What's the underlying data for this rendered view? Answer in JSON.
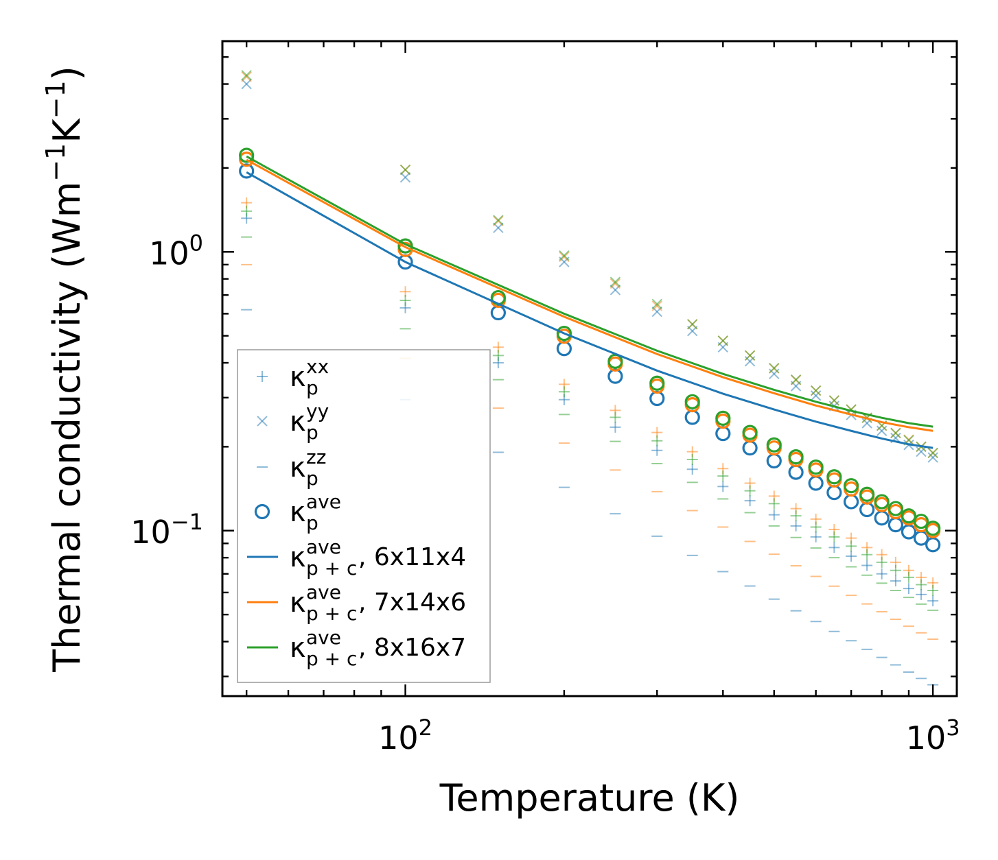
{
  "chart_data": {
    "type": "scatter",
    "xscale": "log",
    "yscale": "log",
    "xlabel": "Temperature (K)",
    "ylabel_main": "Thermal conductivity (Wm",
    "ylabel_sup1": "−1",
    "ylabel_mid": "K",
    "ylabel_sup2": "−1",
    "ylabel_end": ")",
    "xlim": [
      45,
      1110
    ],
    "ylim": [
      0.0255,
      5.7
    ],
    "xticks": [
      {
        "value": 100,
        "base": "10",
        "exp": "2"
      },
      {
        "value": 1000,
        "base": "10",
        "exp": "3"
      }
    ],
    "yticks": [
      {
        "value": 1.0,
        "base": "10",
        "exp": "0"
      },
      {
        "value": 0.1,
        "base": "10",
        "exp": "−1"
      }
    ],
    "x": [
      50,
      100,
      150,
      200,
      250,
      300,
      350,
      400,
      450,
      500,
      550,
      600,
      650,
      700,
      750,
      800,
      850,
      900,
      950,
      1000
    ],
    "colors": {
      "blue": "#1f77b4",
      "orange": "#ff7f0e",
      "green": "#2ca02c"
    },
    "meshes": [
      "6x11x4",
      "7x14x6",
      "8x16x7"
    ],
    "series_points": {
      "xx": [
        [
          1.32,
          0.63,
          0.4,
          0.295,
          0.235,
          0.194,
          0.166,
          0.144,
          0.128,
          0.114,
          0.104,
          0.095,
          0.087,
          0.081,
          0.075,
          0.07,
          0.066,
          0.062,
          0.059,
          0.056
        ],
        [
          1.5,
          0.72,
          0.455,
          0.335,
          0.27,
          0.225,
          0.192,
          0.167,
          0.148,
          0.133,
          0.12,
          0.11,
          0.101,
          0.094,
          0.087,
          0.082,
          0.077,
          0.072,
          0.068,
          0.065
        ],
        [
          1.4,
          0.67,
          0.425,
          0.315,
          0.255,
          0.21,
          0.18,
          0.157,
          0.139,
          0.125,
          0.113,
          0.103,
          0.095,
          0.088,
          0.082,
          0.077,
          0.072,
          0.068,
          0.064,
          0.061
        ]
      ],
      "yy": [
        [
          4.0,
          1.85,
          1.22,
          0.92,
          0.73,
          0.61,
          0.52,
          0.455,
          0.405,
          0.365,
          0.33,
          0.305,
          0.28,
          0.26,
          0.243,
          0.228,
          0.215,
          0.203,
          0.192,
          0.183
        ],
        [
          4.25,
          1.97,
          1.29,
          0.96,
          0.77,
          0.64,
          0.55,
          0.48,
          0.425,
          0.382,
          0.347,
          0.318,
          0.293,
          0.272,
          0.254,
          0.238,
          0.224,
          0.212,
          0.2,
          0.19
        ],
        [
          4.3,
          1.97,
          1.3,
          0.97,
          0.78,
          0.65,
          0.55,
          0.48,
          0.425,
          0.383,
          0.348,
          0.318,
          0.293,
          0.272,
          0.254,
          0.238,
          0.224,
          0.211,
          0.2,
          0.19
        ]
      ],
      "zz": [
        [
          0.62,
          0.295,
          0.191,
          0.143,
          0.115,
          0.0955,
          0.0815,
          0.0713,
          0.0633,
          0.0568,
          0.0516,
          0.0472,
          0.0435,
          0.0403,
          0.0375,
          0.0351,
          0.033,
          0.0311,
          0.0295,
          0.028
        ],
        [
          0.9,
          0.415,
          0.275,
          0.206,
          0.165,
          0.138,
          0.118,
          0.103,
          0.0915,
          0.0823,
          0.0748,
          0.0685,
          0.0632,
          0.0586,
          0.0546,
          0.0512,
          0.0481,
          0.0454,
          0.043,
          0.0408
        ],
        [
          1.13,
          0.53,
          0.348,
          0.261,
          0.209,
          0.174,
          0.149,
          0.13,
          0.116,
          0.104,
          0.0945,
          0.0866,
          0.08,
          0.0742,
          0.0692,
          0.0648,
          0.061,
          0.0576,
          0.0545,
          0.0518
        ]
      ],
      "ave": [
        [
          1.95,
          0.92,
          0.605,
          0.45,
          0.358,
          0.298,
          0.255,
          0.223,
          0.198,
          0.178,
          0.162,
          0.148,
          0.137,
          0.127,
          0.119,
          0.111,
          0.105,
          0.099,
          0.094,
          0.089
        ],
        [
          2.15,
          1.02,
          0.67,
          0.498,
          0.396,
          0.33,
          0.283,
          0.247,
          0.22,
          0.198,
          0.18,
          0.165,
          0.152,
          0.141,
          0.132,
          0.124,
          0.117,
          0.111,
          0.105,
          0.1
        ],
        [
          2.22,
          1.05,
          0.685,
          0.51,
          0.405,
          0.338,
          0.29,
          0.253,
          0.225,
          0.203,
          0.184,
          0.169,
          0.156,
          0.145,
          0.135,
          0.127,
          0.12,
          0.113,
          0.108,
          0.102
        ]
      ]
    },
    "lines": [
      {
        "name": "6x11x4",
        "color": "#1f77b4",
        "x": [
          50,
          100,
          200,
          300,
          400,
          500,
          600,
          700,
          800,
          900,
          1000
        ],
        "y": [
          1.93,
          0.92,
          0.51,
          0.375,
          0.31,
          0.272,
          0.246,
          0.228,
          0.214,
          0.204,
          0.198
        ]
      },
      {
        "name": "7x14x6",
        "color": "#ff7f0e",
        "x": [
          50,
          100,
          200,
          300,
          400,
          500,
          600,
          700,
          800,
          900,
          1000
        ],
        "y": [
          2.14,
          1.04,
          0.585,
          0.43,
          0.355,
          0.311,
          0.281,
          0.261,
          0.245,
          0.235,
          0.228
        ]
      },
      {
        "name": "8x16x7",
        "color": "#2ca02c",
        "x": [
          50,
          100,
          200,
          300,
          400,
          500,
          600,
          700,
          800,
          900,
          1000
        ],
        "y": [
          2.2,
          1.065,
          0.6,
          0.442,
          0.365,
          0.32,
          0.29,
          0.269,
          0.254,
          0.243,
          0.236
        ]
      }
    ],
    "legend": {
      "position": "lower-left",
      "entries": [
        {
          "base": "κ",
          "sup": "xx",
          "sub": "p",
          "suffix": "",
          "marker": "plus"
        },
        {
          "base": "κ",
          "sup": "yy",
          "sub": "p",
          "suffix": "",
          "marker": "cross"
        },
        {
          "base": "κ",
          "sup": "zz",
          "sub": "p",
          "suffix": "",
          "marker": "hline"
        },
        {
          "base": "κ",
          "sup": "ave",
          "sub": "p",
          "suffix": "",
          "marker": "circle"
        },
        {
          "base": "κ",
          "sup": "ave",
          "sub": "p + c",
          "suffix": ", 6x11x4",
          "marker": "line-blue"
        },
        {
          "base": "κ",
          "sup": "ave",
          "sub": "p + c",
          "suffix": ", 7x14x6",
          "marker": "line-orange"
        },
        {
          "base": "κ",
          "sup": "ave",
          "sub": "p + c",
          "suffix": ", 8x16x7",
          "marker": "line-green"
        }
      ]
    }
  }
}
